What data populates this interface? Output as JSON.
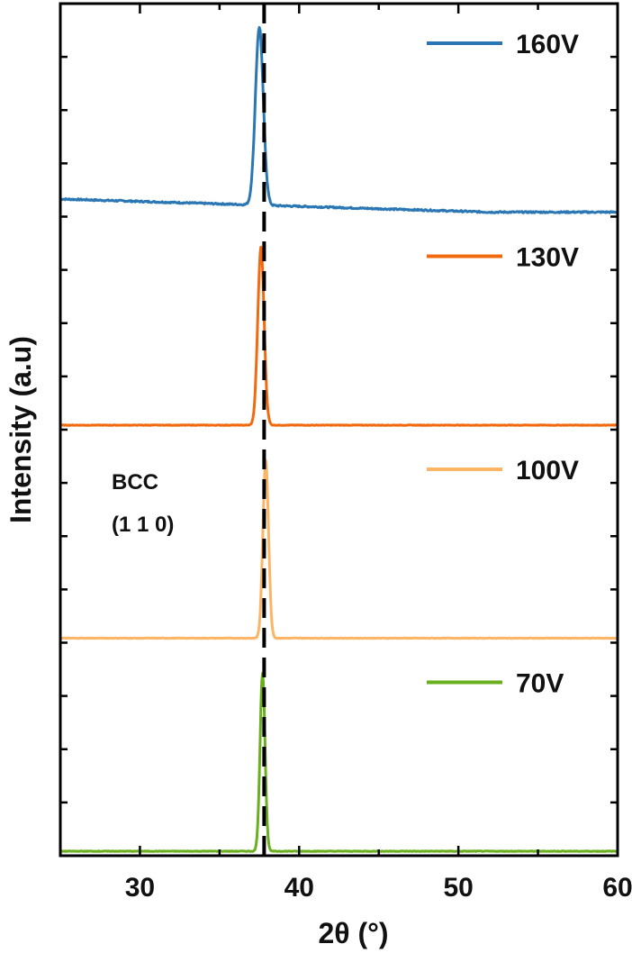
{
  "chart_data": {
    "type": "line",
    "title": "",
    "xlabel": "2θ (°)",
    "ylabel": "Intensity (a.u)",
    "xlim": [
      25,
      60
    ],
    "x_ticks": [
      "30",
      "40",
      "50",
      "60"
    ],
    "grid": false,
    "legend_placement": "right, beside each trace",
    "reference_line": {
      "x": 37.8,
      "style": "dashed",
      "color": "#000000"
    },
    "annotation": {
      "lines": [
        "BCC",
        "(1 1 0)"
      ]
    },
    "series": [
      {
        "name": "160V",
        "color": "#2a77b4",
        "peak_x": 37.5,
        "peak_y": 0.95,
        "baseline_start": 0.07,
        "baseline_end": 0.0,
        "noise": 0.004,
        "width": 0.35
      },
      {
        "name": "130V",
        "color": "#f26a0f",
        "peak_x": 37.6,
        "peak_y": 0.95,
        "baseline_start": 0.0,
        "baseline_end": 0.0,
        "noise": 0.0015,
        "width": 0.28
      },
      {
        "name": "100V",
        "color": "#fbb565",
        "peak_x": 37.9,
        "peak_y": 0.95,
        "baseline_start": 0.0,
        "baseline_end": 0.0,
        "noise": 0.0015,
        "width": 0.25
      },
      {
        "name": "70V",
        "color": "#6aaf1e",
        "peak_x": 37.7,
        "peak_y": 0.95,
        "baseline_start": 0.0,
        "baseline_end": 0.0,
        "noise": 0.0015,
        "width": 0.22
      }
    ]
  }
}
